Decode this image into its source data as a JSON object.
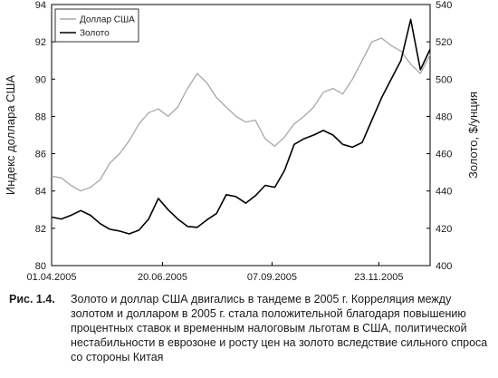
{
  "chart_data": {
    "type": "line",
    "x": [
      "01.04.2005",
      "08.04.2005",
      "15.04.2005",
      "22.04.2005",
      "29.04.2005",
      "06.05.2005",
      "13.05.2005",
      "20.05.2005",
      "27.05.2005",
      "03.06.2005",
      "10.06.2005",
      "17.06.2005",
      "24.06.2005",
      "01.07.2005",
      "08.07.2005",
      "15.07.2005",
      "22.07.2005",
      "29.07.2005",
      "05.08.2005",
      "12.08.2005",
      "19.08.2005",
      "26.08.2005",
      "02.09.2005",
      "09.09.2005",
      "16.09.2005",
      "23.09.2005",
      "30.09.2005",
      "07.10.2005",
      "14.10.2005",
      "21.10.2005",
      "28.10.2005",
      "04.11.2005",
      "11.11.2005",
      "18.11.2005",
      "25.11.2005",
      "02.12.2005",
      "09.12.2005",
      "16.12.2005",
      "23.12.2005",
      "30.12.2005"
    ],
    "xticks": [
      "01.04.2005",
      "20.06.2005",
      "07.09.2005",
      "23.11.2005"
    ],
    "xlim": [
      "01.04.2005",
      "30.12.2005"
    ],
    "series": [
      {
        "name": "Доллар США",
        "axis": "left",
        "color": "#a8a8a8",
        "values": [
          84.8,
          84.7,
          84.3,
          84.0,
          84.2,
          84.6,
          85.5,
          86.0,
          86.7,
          87.6,
          88.2,
          88.4,
          88.0,
          88.5,
          89.5,
          90.3,
          89.8,
          89.0,
          88.5,
          88.0,
          87.7,
          87.8,
          86.8,
          86.4,
          86.9,
          87.6,
          88.0,
          88.5,
          89.3,
          89.5,
          89.2,
          90.0,
          91.0,
          92.0,
          92.2,
          91.8,
          91.5,
          90.8,
          90.3,
          91.3
        ]
      },
      {
        "name": "Золото",
        "axis": "right",
        "color": "#000000",
        "values": [
          426.0,
          425.0,
          427.0,
          429.5,
          427.0,
          422.5,
          419.5,
          418.5,
          417.0,
          419.0,
          425.0,
          436.0,
          430.0,
          425.0,
          421.0,
          420.5,
          424.5,
          428.0,
          438.0,
          437.0,
          433.5,
          437.5,
          443.0,
          442.0,
          451.0,
          465.0,
          468.0,
          470.0,
          472.5,
          470.0,
          465.0,
          463.5,
          466.0,
          478.0,
          490.0,
          500.0,
          510.0,
          532.0,
          505.0,
          516.0
        ]
      }
    ],
    "ylabel": "Индекс доллара США",
    "ylabel_right": "Золото, $/унция",
    "ylim": [
      80,
      94
    ],
    "ylim_right": [
      400,
      540
    ],
    "yticks": [
      80,
      82,
      84,
      86,
      88,
      90,
      92,
      94
    ],
    "yticks_right": [
      400,
      420,
      440,
      460,
      480,
      500,
      520,
      540
    ],
    "grid": false,
    "legend": "top-left"
  },
  "caption": {
    "label": "Рис. 1.4.",
    "text": "Золото и доллар США двигались в тандеме в 2005 г. Корреляция между золотом и долларом в 2005 г. стала положительной благодаря повышению процентных ставок и временным налоговым льготам в США, политической нестабильности в еврозоне и росту цен на золото вследствие сильного спроса со стороны Китая"
  }
}
